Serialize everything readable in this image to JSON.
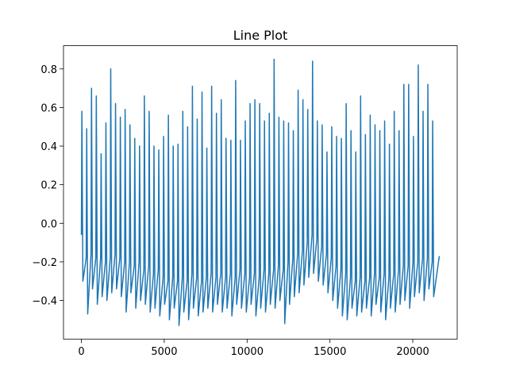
{
  "chart_data": {
    "type": "line",
    "title": "Line Plot",
    "color": "#1f77b4",
    "xlim": [
      -1080,
      22680
    ],
    "ylim": [
      -0.6,
      0.92
    ],
    "xticks": [
      0,
      5000,
      10000,
      15000,
      20000
    ],
    "yticks": [
      {
        "value": -0.4,
        "label": "−0.4"
      },
      {
        "value": -0.2,
        "label": "−0.2"
      },
      {
        "value": 0,
        "label": "0.0"
      },
      0.2,
      0.4,
      0.6,
      0.8
    ],
    "x": [
      0,
      30,
      90,
      290,
      320,
      380,
      580,
      610,
      670,
      870,
      900,
      960,
      1160,
      1190,
      1250,
      1450,
      1480,
      1540,
      1740,
      1770,
      1830,
      2030,
      2060,
      2120,
      2320,
      2350,
      2410,
      2610,
      2640,
      2700,
      2900,
      2930,
      2990,
      3190,
      3220,
      3280,
      3480,
      3510,
      3570,
      3770,
      3800,
      3860,
      4060,
      4090,
      4150,
      4350,
      4380,
      4440,
      4640,
      4670,
      4730,
      4930,
      4960,
      5020,
      5220,
      5250,
      5310,
      5510,
      5540,
      5600,
      5800,
      5830,
      5890,
      6090,
      6120,
      6180,
      6380,
      6410,
      6470,
      6670,
      6700,
      6760,
      6960,
      6990,
      7050,
      7250,
      7280,
      7340,
      7540,
      7570,
      7630,
      7830,
      7860,
      7920,
      8120,
      8150,
      8210,
      8410,
      8440,
      8500,
      8700,
      8730,
      8790,
      8990,
      9020,
      9080,
      9280,
      9310,
      9370,
      9570,
      9600,
      9660,
      9860,
      9890,
      9950,
      10150,
      10180,
      10240,
      10440,
      10470,
      10530,
      10730,
      10760,
      10820,
      11020,
      11050,
      11110,
      11310,
      11340,
      11400,
      11600,
      11630,
      11690,
      11890,
      11920,
      11980,
      12180,
      12210,
      12270,
      12470,
      12500,
      12560,
      12760,
      12790,
      12850,
      13050,
      13080,
      13140,
      13340,
      13370,
      13430,
      13630,
      13660,
      13720,
      13920,
      13950,
      14010,
      14210,
      14240,
      14300,
      14500,
      14530,
      14590,
      14790,
      14820,
      14880,
      15080,
      15110,
      15170,
      15370,
      15400,
      15460,
      15660,
      15690,
      15750,
      15950,
      15980,
      16040,
      16240,
      16270,
      16330,
      16530,
      16560,
      16620,
      16820,
      16850,
      16910,
      17110,
      17140,
      17200,
      17400,
      17430,
      17490,
      17690,
      17720,
      17780,
      17980,
      18010,
      18070,
      18270,
      18300,
      18360,
      18560,
      18590,
      18650,
      18850,
      18880,
      18940,
      19140,
      19170,
      19230,
      19430,
      19460,
      19520,
      19720,
      19750,
      19810,
      20010,
      20040,
      20100,
      20300,
      20330,
      20390,
      20590,
      20620,
      20680,
      20880,
      20910,
      20970,
      21170,
      21200,
      21260,
      21600
    ],
    "values": [
      -0.06,
      0.58,
      -0.3,
      -0.18,
      0.49,
      -0.47,
      -0.16,
      0.7,
      -0.34,
      -0.18,
      0.66,
      -0.42,
      -0.18,
      0.36,
      -0.38,
      -0.2,
      0.52,
      -0.4,
      -0.18,
      0.8,
      -0.36,
      -0.16,
      0.62,
      -0.34,
      -0.18,
      0.55,
      -0.38,
      -0.2,
      0.59,
      -0.46,
      -0.2,
      0.51,
      -0.36,
      -0.22,
      0.44,
      -0.44,
      -0.2,
      0.4,
      -0.4,
      -0.24,
      0.66,
      -0.42,
      -0.22,
      0.58,
      -0.46,
      -0.26,
      0.4,
      -0.44,
      -0.24,
      0.38,
      -0.48,
      -0.28,
      0.45,
      -0.42,
      -0.3,
      0.56,
      -0.5,
      -0.28,
      0.4,
      -0.44,
      -0.3,
      0.41,
      -0.53,
      -0.28,
      0.58,
      -0.46,
      -0.3,
      0.5,
      -0.5,
      -0.26,
      0.71,
      -0.44,
      -0.28,
      0.54,
      -0.48,
      -0.3,
      0.68,
      -0.46,
      -0.28,
      0.39,
      -0.44,
      -0.26,
      0.71,
      -0.46,
      -0.28,
      0.57,
      -0.42,
      -0.26,
      0.64,
      -0.46,
      -0.28,
      0.44,
      -0.44,
      -0.26,
      0.43,
      -0.48,
      -0.28,
      0.74,
      -0.42,
      -0.24,
      0.43,
      -0.44,
      -0.26,
      0.53,
      -0.46,
      -0.28,
      0.62,
      -0.42,
      -0.26,
      0.64,
      -0.48,
      -0.28,
      0.62,
      -0.44,
      -0.24,
      0.53,
      -0.46,
      -0.26,
      0.57,
      -0.42,
      -0.24,
      0.85,
      -0.44,
      -0.22,
      0.55,
      -0.4,
      -0.24,
      0.53,
      -0.52,
      -0.2,
      0.52,
      -0.42,
      -0.18,
      0.48,
      -0.38,
      -0.16,
      0.69,
      -0.36,
      -0.14,
      0.64,
      -0.32,
      -0.1,
      0.59,
      -0.28,
      -0.06,
      0.84,
      -0.26,
      -0.08,
      0.53,
      -0.3,
      -0.12,
      0.51,
      -0.32,
      -0.16,
      0.37,
      -0.36,
      -0.18,
      0.5,
      -0.4,
      -0.22,
      0.45,
      -0.44,
      -0.24,
      0.44,
      -0.48,
      -0.26,
      0.62,
      -0.5,
      -0.28,
      0.48,
      -0.44,
      -0.3,
      0.37,
      -0.48,
      -0.28,
      0.66,
      -0.46,
      -0.3,
      0.46,
      -0.44,
      -0.28,
      0.56,
      -0.48,
      -0.26,
      0.51,
      -0.42,
      -0.28,
      0.48,
      -0.46,
      -0.26,
      0.53,
      -0.5,
      -0.28,
      0.41,
      -0.44,
      -0.26,
      0.58,
      -0.46,
      -0.24,
      0.48,
      -0.42,
      -0.22,
      0.72,
      -0.4,
      -0.22,
      0.72,
      -0.44,
      -0.2,
      0.45,
      -0.38,
      -0.2,
      0.82,
      -0.36,
      -0.18,
      0.58,
      -0.4,
      -0.18,
      0.72,
      -0.34,
      -0.2,
      0.53,
      -0.38,
      -0.17
    ]
  }
}
